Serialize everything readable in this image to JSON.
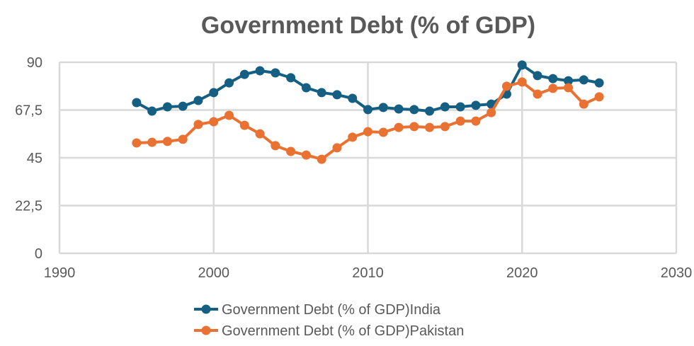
{
  "chart_data": {
    "type": "line",
    "title": "Government Debt (% of GDP)",
    "xlabel": "",
    "ylabel": "",
    "xlim": [
      1990,
      2030
    ],
    "ylim": [
      0,
      90
    ],
    "x_ticks": [
      "1990",
      "2000",
      "2010",
      "2020",
      "2030"
    ],
    "y_ticks": [
      "0",
      "22,5",
      "45",
      "67,5",
      "90"
    ],
    "grid": true,
    "legend_position": "bottom",
    "x": [
      1995,
      1996,
      1997,
      1998,
      1999,
      2000,
      2001,
      2002,
      2003,
      2004,
      2005,
      2006,
      2007,
      2008,
      2009,
      2010,
      2011,
      2012,
      2013,
      2014,
      2015,
      2016,
      2017,
      2018,
      2019,
      2020,
      2021,
      2022,
      2023,
      2024,
      2025
    ],
    "series": [
      {
        "name": "Government Debt (% of GDP)India",
        "color": "#156082",
        "values": [
          71,
          67,
          69,
          69.3,
          72,
          75.7,
          80.3,
          84.3,
          86,
          85,
          82.7,
          78,
          75.7,
          74.7,
          73,
          67.7,
          68.7,
          68,
          67.7,
          67,
          69,
          69,
          69.7,
          70.3,
          75,
          88.7,
          83.7,
          82.3,
          81.3,
          81.7,
          80.3
        ]
      },
      {
        "name": "Government Debt (% of GDP)Pakistan",
        "color": "#E97132",
        "values": [
          52,
          52.3,
          52.7,
          53.7,
          60.7,
          62,
          65,
          60.3,
          56.3,
          50.7,
          48,
          46.3,
          44.3,
          49.7,
          54.7,
          57.3,
          57,
          59.3,
          59.7,
          59.3,
          59.7,
          62.3,
          62.3,
          66.3,
          78.7,
          80.7,
          75,
          77.7,
          78,
          70.3,
          73.7
        ]
      }
    ]
  }
}
